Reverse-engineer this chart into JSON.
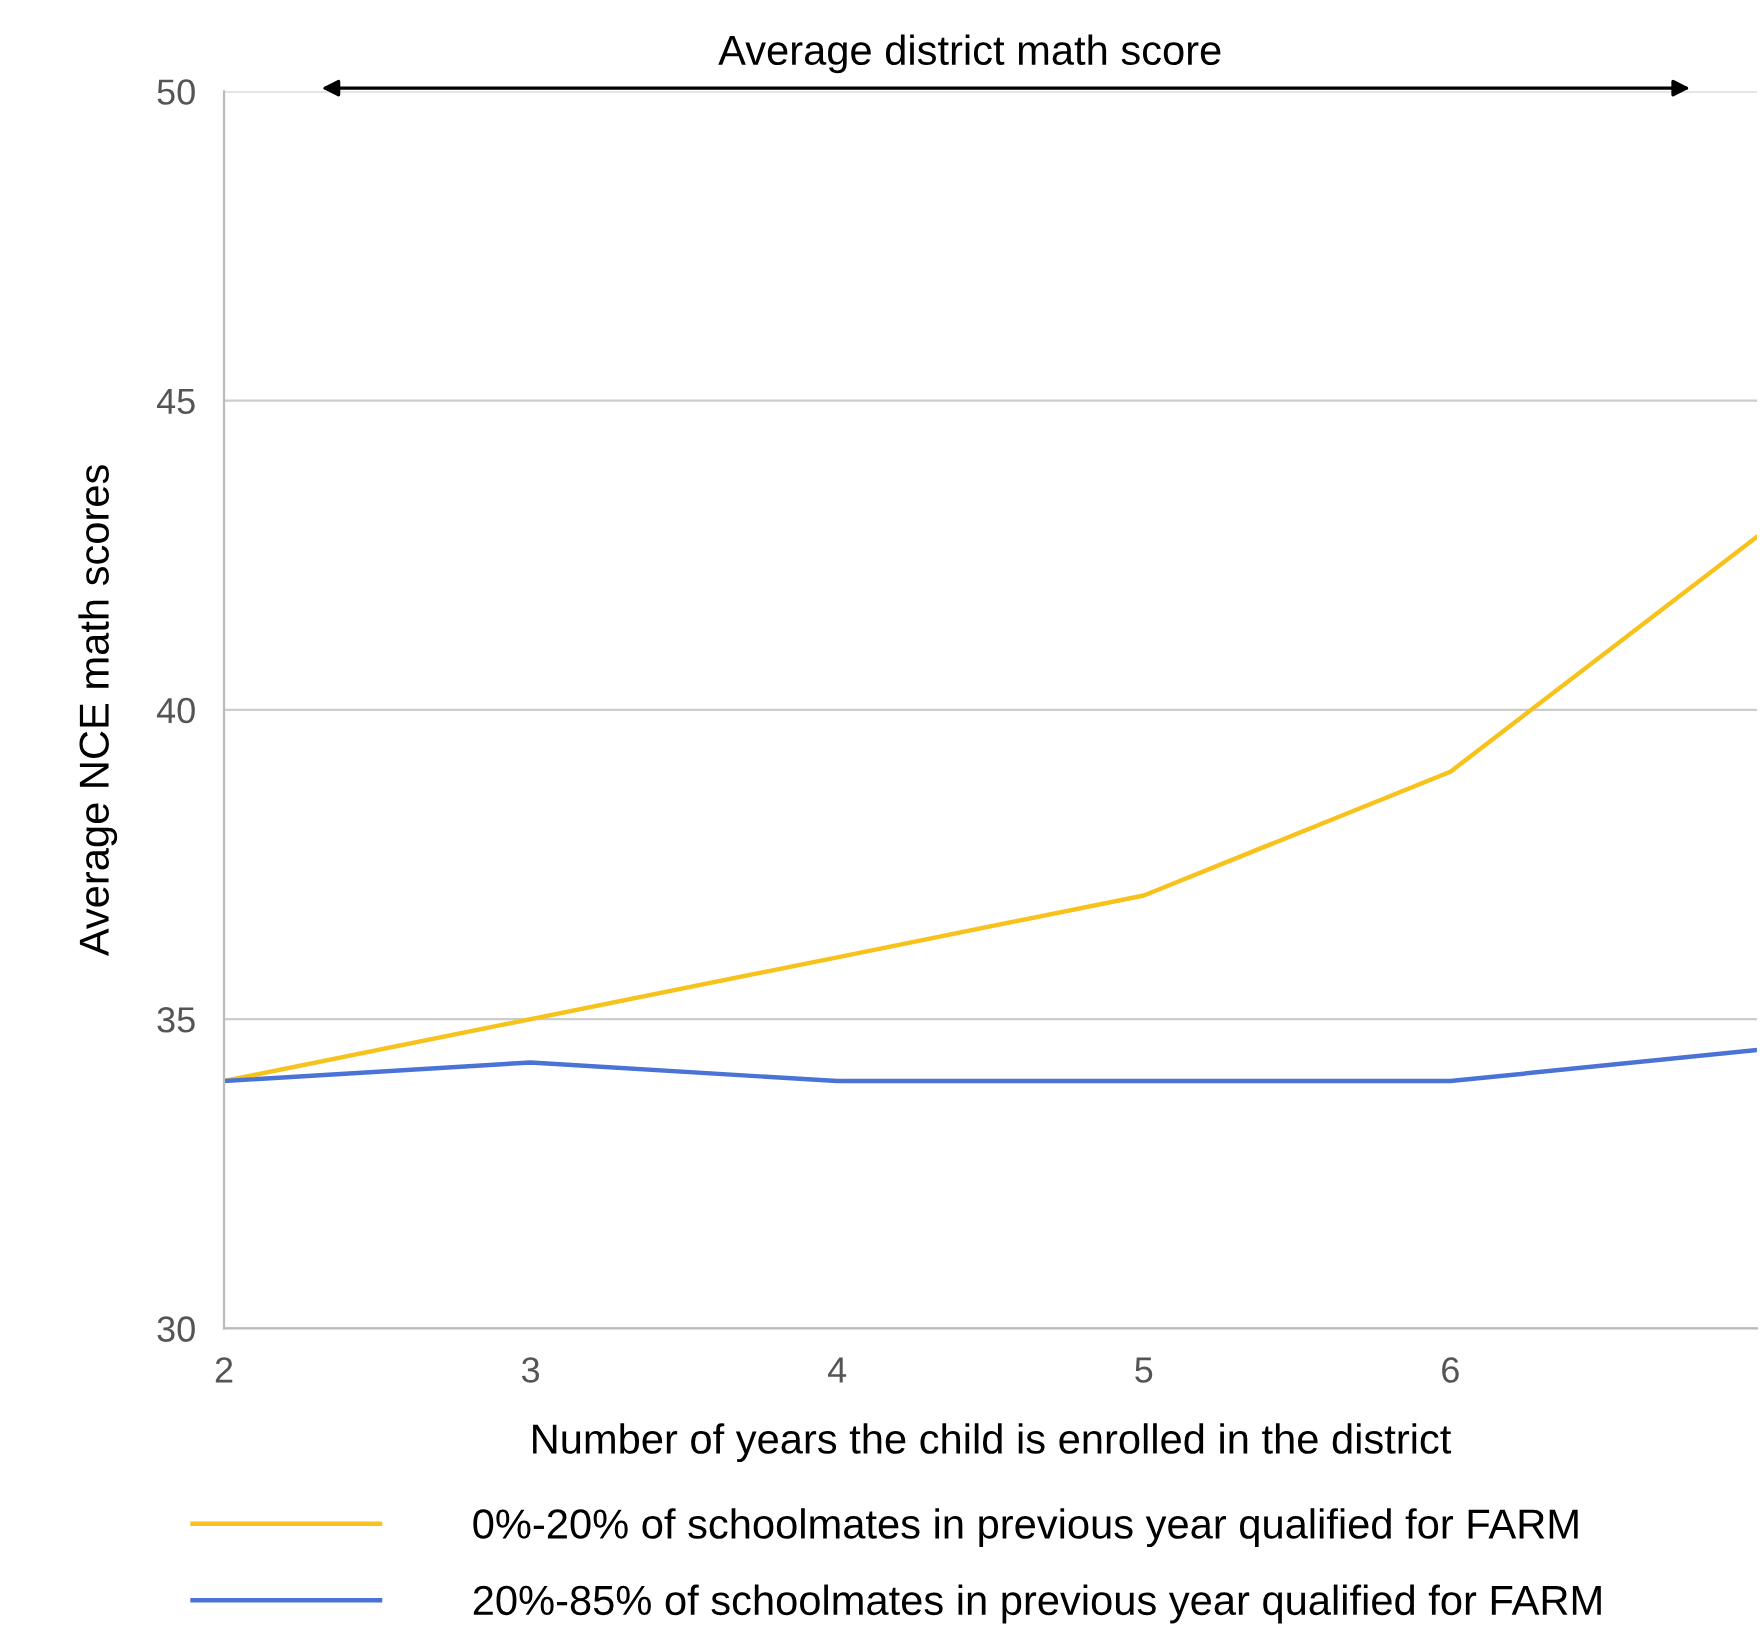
{
  "chart_data": {
    "type": "line",
    "xlabel": "Number of years the child is enrolled in the district",
    "ylabel": "Average NCE math scores",
    "annotations": [
      "Average district math score"
    ],
    "x": [
      2,
      3,
      4,
      5,
      6,
      7
    ],
    "series": [
      {
        "name": "0%-20% of schoolmates in previous year qualified for FARM",
        "color": "#f7c21b",
        "values": [
          34,
          35,
          36,
          37,
          39,
          42.8
        ]
      },
      {
        "name": "20%-85% of schoolmates in previous year qualified for FARM",
        "color": "#4a73d6",
        "values": [
          34,
          34.3,
          34,
          34,
          34,
          34.5
        ]
      }
    ],
    "xlim": [
      2,
      7
    ],
    "xticks": [
      2,
      3,
      4,
      5,
      6
    ],
    "ylim": [
      30,
      50
    ],
    "yticks": [
      30,
      35,
      40,
      45,
      50
    ],
    "grid": "y",
    "legend": "bottom",
    "marker": "none",
    "line_style": "solid"
  }
}
